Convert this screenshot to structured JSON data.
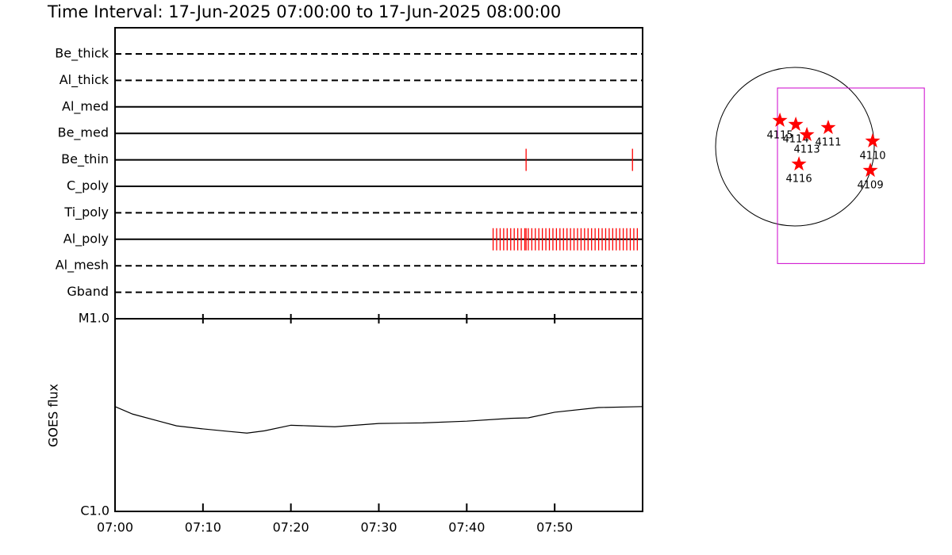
{
  "chart_data": [
    {
      "type": "timeline",
      "title": "Time Interval: 17-Jun-2025 07:00:00 to 17-Jun-2025 08:00:00",
      "xlim": [
        0,
        60
      ],
      "event_color": "#ff0000",
      "rows": [
        {
          "name": "Be_thick",
          "style": "dashed",
          "events": []
        },
        {
          "name": "Al_thick",
          "style": "dashed",
          "events": []
        },
        {
          "name": "Al_med",
          "style": "solid",
          "events": []
        },
        {
          "name": "Be_med",
          "style": "solid",
          "events": []
        },
        {
          "name": "Be_thin",
          "style": "solid",
          "events": [
            46.75,
            58.85
          ]
        },
        {
          "name": "C_poly",
          "style": "solid",
          "events": []
        },
        {
          "name": "Ti_poly",
          "style": "dashed",
          "events": []
        },
        {
          "name": "Al_poly",
          "style": "solid",
          "events": [
            43.0,
            43.4,
            43.8,
            44.2,
            44.6,
            45.0,
            45.4,
            45.8,
            46.2,
            46.6,
            46.75,
            47.0,
            47.4,
            47.8,
            48.2,
            48.6,
            49.0,
            49.4,
            49.8,
            50.2,
            50.6,
            51.0,
            51.4,
            51.8,
            52.2,
            52.6,
            53.0,
            53.4,
            53.8,
            54.2,
            54.6,
            55.0,
            55.4,
            55.8,
            56.2,
            56.6,
            57.0,
            57.4,
            57.8,
            58.2,
            58.6,
            59.0,
            59.4
          ]
        },
        {
          "name": "Al_mesh",
          "style": "dashed",
          "events": []
        },
        {
          "name": "Gband",
          "style": "dashed",
          "events": []
        }
      ]
    },
    {
      "type": "line",
      "y_label": "GOES flux",
      "color": "#000000",
      "log_scale": true,
      "x": [
        0,
        2,
        5,
        7,
        10,
        13,
        15,
        17,
        20,
        22,
        25,
        30,
        35,
        40,
        45,
        47,
        50,
        55,
        60
      ],
      "values": [
        3.5e-06,
        3.2e-06,
        2.94e-06,
        2.78e-06,
        2.68e-06,
        2.6e-06,
        2.55e-06,
        2.62e-06,
        2.8e-06,
        2.78e-06,
        2.75e-06,
        2.86e-06,
        2.88e-06,
        2.94e-06,
        3.04e-06,
        3.06e-06,
        3.27e-06,
        3.46e-06,
        3.5e-06
      ],
      "xlim": [
        0,
        60
      ],
      "xticks": [
        {
          "value": 0,
          "label": "07:00"
        },
        {
          "value": 10,
          "label": "07:10"
        },
        {
          "value": 20,
          "label": "07:20"
        },
        {
          "value": 30,
          "label": "07:30"
        },
        {
          "value": 40,
          "label": "07:40"
        },
        {
          "value": 50,
          "label": "07:50"
        }
      ],
      "ylim": [
        1e-06,
        1e-05
      ],
      "yticks": [
        {
          "value": 1e-06,
          "label": "C1.0"
        },
        {
          "value": 1e-05,
          "label": "M1.0"
        }
      ]
    },
    {
      "type": "map",
      "disk_radius": 950,
      "disk_color": "#000000",
      "fov": {
        "x": [
          -209,
          1550
        ],
        "y": [
          -1400,
          703
        ]
      },
      "fov_color": "#cc00cc",
      "point_color": "#ff0000",
      "points": [
        {
          "label": "4115",
          "x": -180,
          "y": 314
        },
        {
          "label": "4114",
          "x": 10,
          "y": 266
        },
        {
          "label": "4113",
          "x": 143,
          "y": 143
        },
        {
          "label": "4111",
          "x": 399,
          "y": 228
        },
        {
          "label": "4110",
          "x": 931,
          "y": 67
        },
        {
          "label": "4116",
          "x": 48,
          "y": -209
        },
        {
          "label": "4109",
          "x": 903,
          "y": -285
        }
      ]
    }
  ]
}
